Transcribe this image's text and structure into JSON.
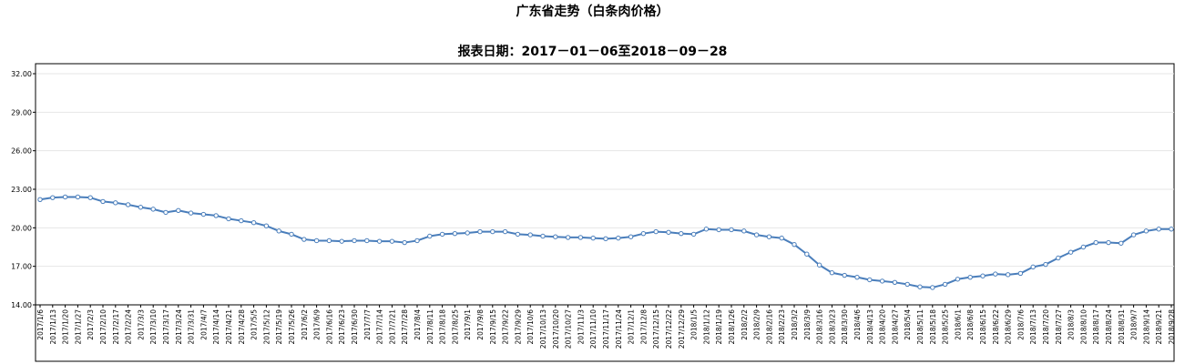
{
  "chart_data": {
    "type": "line",
    "title": "广东省走势（白条肉价格）",
    "subtitle": "报表日期：2017－01－06至2018－09－28",
    "xlabel": "",
    "ylabel": "",
    "ylim": [
      14.0,
      32.0
    ],
    "yticks": [
      "14.00",
      "17.00",
      "20.00",
      "23.00",
      "26.00",
      "29.00",
      "32.00"
    ],
    "grid": true,
    "legend": "none",
    "series_color": "#4a7ebb",
    "x": [
      "2017/1/6",
      "2017/1/13",
      "2017/1/20",
      "2017/1/27",
      "2017/2/3",
      "2017/2/10",
      "2017/2/17",
      "2017/2/24",
      "2017/3/3",
      "2017/3/10",
      "2017/3/17",
      "2017/3/24",
      "2017/3/31",
      "2017/4/7",
      "2017/4/14",
      "2017/4/21",
      "2017/4/28",
      "2017/5/5",
      "2017/5/12",
      "2017/5/19",
      "2017/5/26",
      "2017/6/2",
      "2017/6/9",
      "2017/6/16",
      "2017/6/23",
      "2017/6/30",
      "2017/7/7",
      "2017/7/14",
      "2017/7/21",
      "2017/7/28",
      "2017/8/4",
      "2017/8/11",
      "2017/8/18",
      "2017/8/25",
      "2017/9/1",
      "2017/9/8",
      "2017/9/15",
      "2017/9/22",
      "2017/9/29",
      "2017/10/6",
      "2017/10/13",
      "2017/10/20",
      "2017/10/27",
      "2017/11/3",
      "2017/11/10",
      "2017/11/17",
      "2017/11/24",
      "2017/12/1",
      "2017/12/8",
      "2017/12/15",
      "2017/12/22",
      "2017/12/29",
      "2018/1/5",
      "2018/1/12",
      "2018/1/19",
      "2018/1/26",
      "2018/2/2",
      "2018/2/9",
      "2018/2/16",
      "2018/2/23",
      "2018/3/2",
      "2018/3/9",
      "2018/3/16",
      "2018/3/23",
      "2018/3/30",
      "2018/4/6",
      "2018/4/13",
      "2018/4/20",
      "2018/4/27",
      "2018/5/4",
      "2018/5/11",
      "2018/5/18",
      "2018/5/25",
      "2018/6/1",
      "2018/6/8",
      "2018/6/15",
      "2018/6/22",
      "2018/6/29",
      "2018/7/6",
      "2018/7/13",
      "2018/7/20",
      "2018/7/27",
      "2018/8/3",
      "2018/8/10",
      "2018/8/17",
      "2018/8/24",
      "2018/8/31",
      "2018/9/7",
      "2018/9/14",
      "2018/9/21",
      "2018/9/28"
    ],
    "values": [
      22.2,
      22.35,
      22.4,
      22.4,
      22.35,
      22.05,
      21.95,
      21.8,
      21.6,
      21.45,
      21.2,
      21.35,
      21.15,
      21.05,
      20.95,
      20.7,
      20.55,
      20.4,
      20.15,
      19.75,
      19.5,
      19.1,
      19.0,
      19.0,
      18.95,
      19.0,
      19.0,
      18.95,
      18.95,
      18.85,
      19.0,
      19.35,
      19.5,
      19.55,
      19.6,
      19.7,
      19.7,
      19.7,
      19.5,
      19.45,
      19.35,
      19.3,
      19.25,
      19.25,
      19.2,
      19.15,
      19.2,
      19.3,
      19.55,
      19.7,
      19.65,
      19.55,
      19.5,
      19.9,
      19.85,
      19.85,
      19.75,
      19.45,
      19.3,
      19.2,
      18.7,
      17.95,
      17.1,
      16.5,
      16.3,
      16.15,
      15.95,
      15.85,
      15.75,
      15.6,
      15.4,
      15.35,
      15.6,
      16.0,
      16.15,
      16.25,
      16.4,
      16.35,
      16.45,
      16.95,
      17.15,
      17.65,
      18.1,
      18.5,
      18.85,
      18.85,
      18.8,
      19.45,
      19.75,
      19.9,
      19.9
    ]
  }
}
